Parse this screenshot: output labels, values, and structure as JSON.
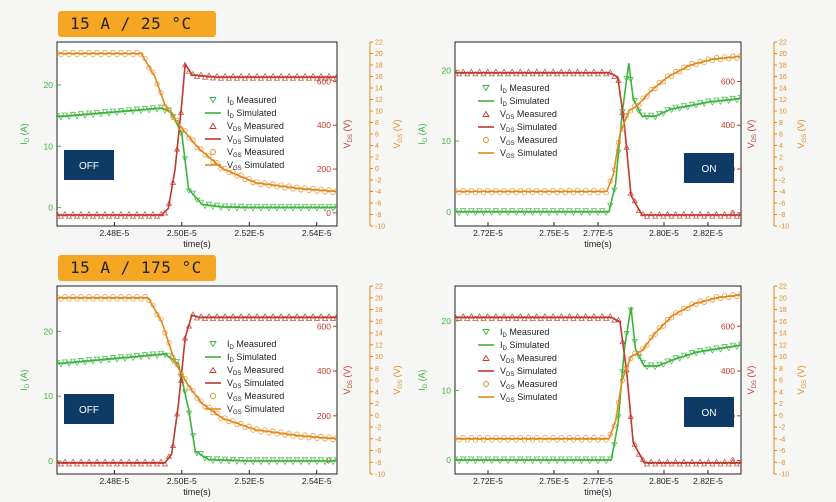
{
  "conditions": [
    "15 A / 25 °C",
    "15 A / 175 °C"
  ],
  "colors": {
    "id": "#3cb43c",
    "vds": "#c0392b",
    "vgs": "#e08a1e",
    "badge": "#0d3b66",
    "label_bg": "#f5a623"
  },
  "legend": [
    {
      "sub": "D",
      "text": "Measured",
      "series": "id",
      "marker": "triangle-down"
    },
    {
      "sub": "D",
      "text": "Simulated",
      "series": "id",
      "marker": "line"
    },
    {
      "sub": "DS",
      "text": "Measured",
      "series": "vds",
      "marker": "triangle-up"
    },
    {
      "sub": "DS",
      "text": "Simulated",
      "series": "vds",
      "marker": "line"
    },
    {
      "sub": "GS",
      "text": "Measured",
      "series": "vgs",
      "marker": "circle"
    },
    {
      "sub": "GS",
      "text": "Simulated",
      "series": "vgs",
      "marker": "line"
    }
  ],
  "chart_data": [
    {
      "type": "line",
      "badge": "OFF",
      "xlabel": "time(s)",
      "xlim": [
        2.463e-05,
        2.546e-05
      ],
      "xticks": [
        2.48e-05,
        2.5e-05,
        2.52e-05,
        2.54e-05
      ],
      "xtick_labels": [
        "2.48E-5",
        "2.50E-5",
        "2.52E-5",
        "2.54E-5"
      ],
      "ylabel_left": "I_D (A)",
      "ylim_left": [
        -3,
        27
      ],
      "yticks_left": [
        0,
        10,
        20
      ],
      "ylabel_right1": "V_DS (V)",
      "ylim_right1": [
        -60,
        780
      ],
      "yticks_right1": [
        0,
        200,
        400,
        600
      ],
      "ylabel_right2": "V_GS (V)",
      "ylim_right2": [
        -10,
        22
      ],
      "yticks_right2": [
        -10,
        -8,
        -6,
        -4,
        -2,
        0,
        2,
        4,
        6,
        8,
        10,
        12,
        14,
        16,
        18,
        20,
        22
      ],
      "series": [
        {
          "name": "I_D",
          "axis": "left",
          "x": [
            2.463e-05,
            2.494e-05,
            2.497e-05,
            2.5e-05,
            2.502e-05,
            2.506e-05,
            2.512e-05,
            2.52e-05,
            2.53e-05,
            2.546e-05
          ],
          "y": [
            14.8,
            16.2,
            15.5,
            12,
            3,
            0.5,
            0.1,
            0,
            0,
            0
          ]
        },
        {
          "name": "V_DS",
          "axis": "right1",
          "x": [
            2.463e-05,
            2.494e-05,
            2.496e-05,
            2.498e-05,
            2.5e-05,
            2.501e-05,
            2.503e-05,
            2.51e-05,
            2.546e-05
          ],
          "y": [
            -10,
            -10,
            20,
            200,
            500,
            680,
            630,
            620,
            620
          ]
        },
        {
          "name": "V_GS",
          "axis": "right2",
          "x": [
            2.463e-05,
            2.488e-05,
            2.492e-05,
            2.495e-05,
            2.5e-05,
            2.505e-05,
            2.512e-05,
            2.522e-05,
            2.535e-05,
            2.546e-05
          ],
          "y": [
            20,
            20,
            16,
            11,
            7,
            3.5,
            0,
            -2.5,
            -3.5,
            -4
          ]
        }
      ]
    },
    {
      "type": "line",
      "badge": "ON",
      "xlabel": "time(s)",
      "xlim": [
        2.705e-05,
        2.835e-05
      ],
      "xticks": [
        2.72e-05,
        2.75e-05,
        2.77e-05,
        2.8e-05,
        2.82e-05
      ],
      "xtick_labels": [
        "2.72E-5",
        "2.75E-5",
        "2.77E-5",
        "2.80E-5",
        "2.82E-5"
      ],
      "ylabel_left": "I_D (A)",
      "ylim_left": [
        -2,
        24
      ],
      "yticks_left": [
        0,
        10,
        20
      ],
      "ylabel_right1": "V_DS (V)",
      "ylim_right1": [
        -60,
        780
      ],
      "yticks_right1": [
        0,
        200,
        400,
        600
      ],
      "ylabel_right2": "V_GS (V)",
      "ylim_right2": [
        -10,
        22
      ],
      "yticks_right2": [
        -10,
        -8,
        -6,
        -4,
        -2,
        0,
        2,
        4,
        6,
        8,
        10,
        12,
        14,
        16,
        18,
        20,
        22
      ],
      "series": [
        {
          "name": "I_D",
          "axis": "left",
          "x": [
            2.705e-05,
            2.775e-05,
            2.778e-05,
            2.781e-05,
            2.784e-05,
            2.786e-05,
            2.79e-05,
            2.796e-05,
            2.803e-05,
            2.812e-05,
            2.82e-05,
            2.835e-05
          ],
          "y": [
            0,
            0,
            4,
            14,
            21,
            16,
            13.5,
            13.5,
            14.5,
            15,
            15.5,
            16
          ]
        },
        {
          "name": "V_DS",
          "axis": "right1",
          "x": [
            2.705e-05,
            2.775e-05,
            2.779e-05,
            2.782e-05,
            2.785e-05,
            2.79e-05,
            2.835e-05
          ],
          "y": [
            640,
            640,
            620,
            400,
            80,
            -10,
            -10
          ]
        },
        {
          "name": "V_GS",
          "axis": "right2",
          "x": [
            2.705e-05,
            2.774e-05,
            2.777e-05,
            2.78e-05,
            2.784e-05,
            2.788e-05,
            2.794e-05,
            2.802e-05,
            2.812e-05,
            2.822e-05,
            2.835e-05
          ],
          "y": [
            -4,
            -4,
            -1,
            6,
            10,
            11,
            13.5,
            16,
            18,
            19,
            19.5
          ]
        }
      ]
    },
    {
      "type": "line",
      "badge": "OFF",
      "xlabel": "time(s)",
      "xlim": [
        2.463e-05,
        2.546e-05
      ],
      "xticks": [
        2.48e-05,
        2.5e-05,
        2.52e-05,
        2.54e-05
      ],
      "xtick_labels": [
        "2.48E-5",
        "2.50E-5",
        "2.52E-5",
        "2.54E-5"
      ],
      "ylabel_left": "I_D (A)",
      "ylim_left": [
        -2,
        27
      ],
      "yticks_left": [
        0,
        10,
        20
      ],
      "ylabel_right1": "V_DS (V)",
      "ylim_right1": [
        -60,
        780
      ],
      "yticks_right1": [
        0,
        200,
        400,
        600
      ],
      "ylabel_right2": "V_GS (V)",
      "ylim_right2": [
        -10,
        22
      ],
      "yticks_right2": [
        -10,
        -8,
        -6,
        -4,
        -2,
        0,
        2,
        4,
        6,
        8,
        10,
        12,
        14,
        16,
        18,
        20,
        22
      ],
      "series": [
        {
          "name": "I_D",
          "axis": "left",
          "x": [
            2.463e-05,
            2.495e-05,
            2.499e-05,
            2.502e-05,
            2.504e-05,
            2.508e-05,
            2.52e-05,
            2.546e-05
          ],
          "y": [
            15,
            16.5,
            15,
            8,
            1.5,
            0.2,
            0,
            0
          ]
        },
        {
          "name": "V_DS",
          "axis": "right1",
          "x": [
            2.463e-05,
            2.495e-05,
            2.497e-05,
            2.499e-05,
            2.501e-05,
            2.503e-05,
            2.505e-05,
            2.546e-05
          ],
          "y": [
            -10,
            -10,
            30,
            250,
            550,
            650,
            640,
            640
          ]
        },
        {
          "name": "V_GS",
          "axis": "right2",
          "x": [
            2.463e-05,
            2.49e-05,
            2.494e-05,
            2.498e-05,
            2.502e-05,
            2.506e-05,
            2.512e-05,
            2.522e-05,
            2.535e-05,
            2.546e-05
          ],
          "y": [
            20,
            20,
            16,
            9,
            5,
            2,
            -0.5,
            -2.5,
            -3.5,
            -4
          ]
        }
      ]
    },
    {
      "type": "line",
      "badge": "ON",
      "xlabel": "time(s)",
      "xlim": [
        2.705e-05,
        2.835e-05
      ],
      "xticks": [
        2.72e-05,
        2.75e-05,
        2.77e-05,
        2.8e-05,
        2.82e-05
      ],
      "xtick_labels": [
        "2.72E-5",
        "2.75E-5",
        "2.77E-5",
        "2.80E-5",
        "2.82E-5"
      ],
      "ylabel_left": "I_D (A)",
      "ylim_left": [
        -2,
        25
      ],
      "yticks_left": [
        0,
        10,
        20
      ],
      "ylabel_right1": "V_DS (V)",
      "ylim_right1": [
        -60,
        780
      ],
      "yticks_right1": [
        0,
        200,
        400,
        600
      ],
      "ylabel_right2": "V_GS (V)",
      "ylim_right2": [
        -10,
        22
      ],
      "yticks_right2": [
        -10,
        -8,
        -6,
        -4,
        -2,
        0,
        2,
        4,
        6,
        8,
        10,
        12,
        14,
        16,
        18,
        20,
        22
      ],
      "series": [
        {
          "name": "I_D",
          "axis": "left",
          "x": [
            2.705e-05,
            2.776e-05,
            2.779e-05,
            2.782e-05,
            2.785e-05,
            2.787e-05,
            2.791e-05,
            2.797e-05,
            2.805e-05,
            2.815e-05,
            2.825e-05,
            2.835e-05
          ],
          "y": [
            0,
            0,
            5,
            16,
            22,
            16,
            13.5,
            13.5,
            14.5,
            15.5,
            16,
            16.5
          ]
        },
        {
          "name": "V_DS",
          "axis": "right1",
          "x": [
            2.705e-05,
            2.776e-05,
            2.78e-05,
            2.783e-05,
            2.786e-05,
            2.791e-05,
            2.835e-05
          ],
          "y": [
            640,
            640,
            620,
            400,
            80,
            -10,
            -10
          ]
        },
        {
          "name": "V_GS",
          "axis": "right2",
          "x": [
            2.705e-05,
            2.775e-05,
            2.778e-05,
            2.781e-05,
            2.785e-05,
            2.79e-05,
            2.796e-05,
            2.804e-05,
            2.814e-05,
            2.824e-05,
            2.835e-05
          ],
          "y": [
            -4,
            -4,
            -1,
            6,
            10,
            11,
            14,
            17,
            19,
            20,
            20.5
          ]
        }
      ]
    }
  ]
}
